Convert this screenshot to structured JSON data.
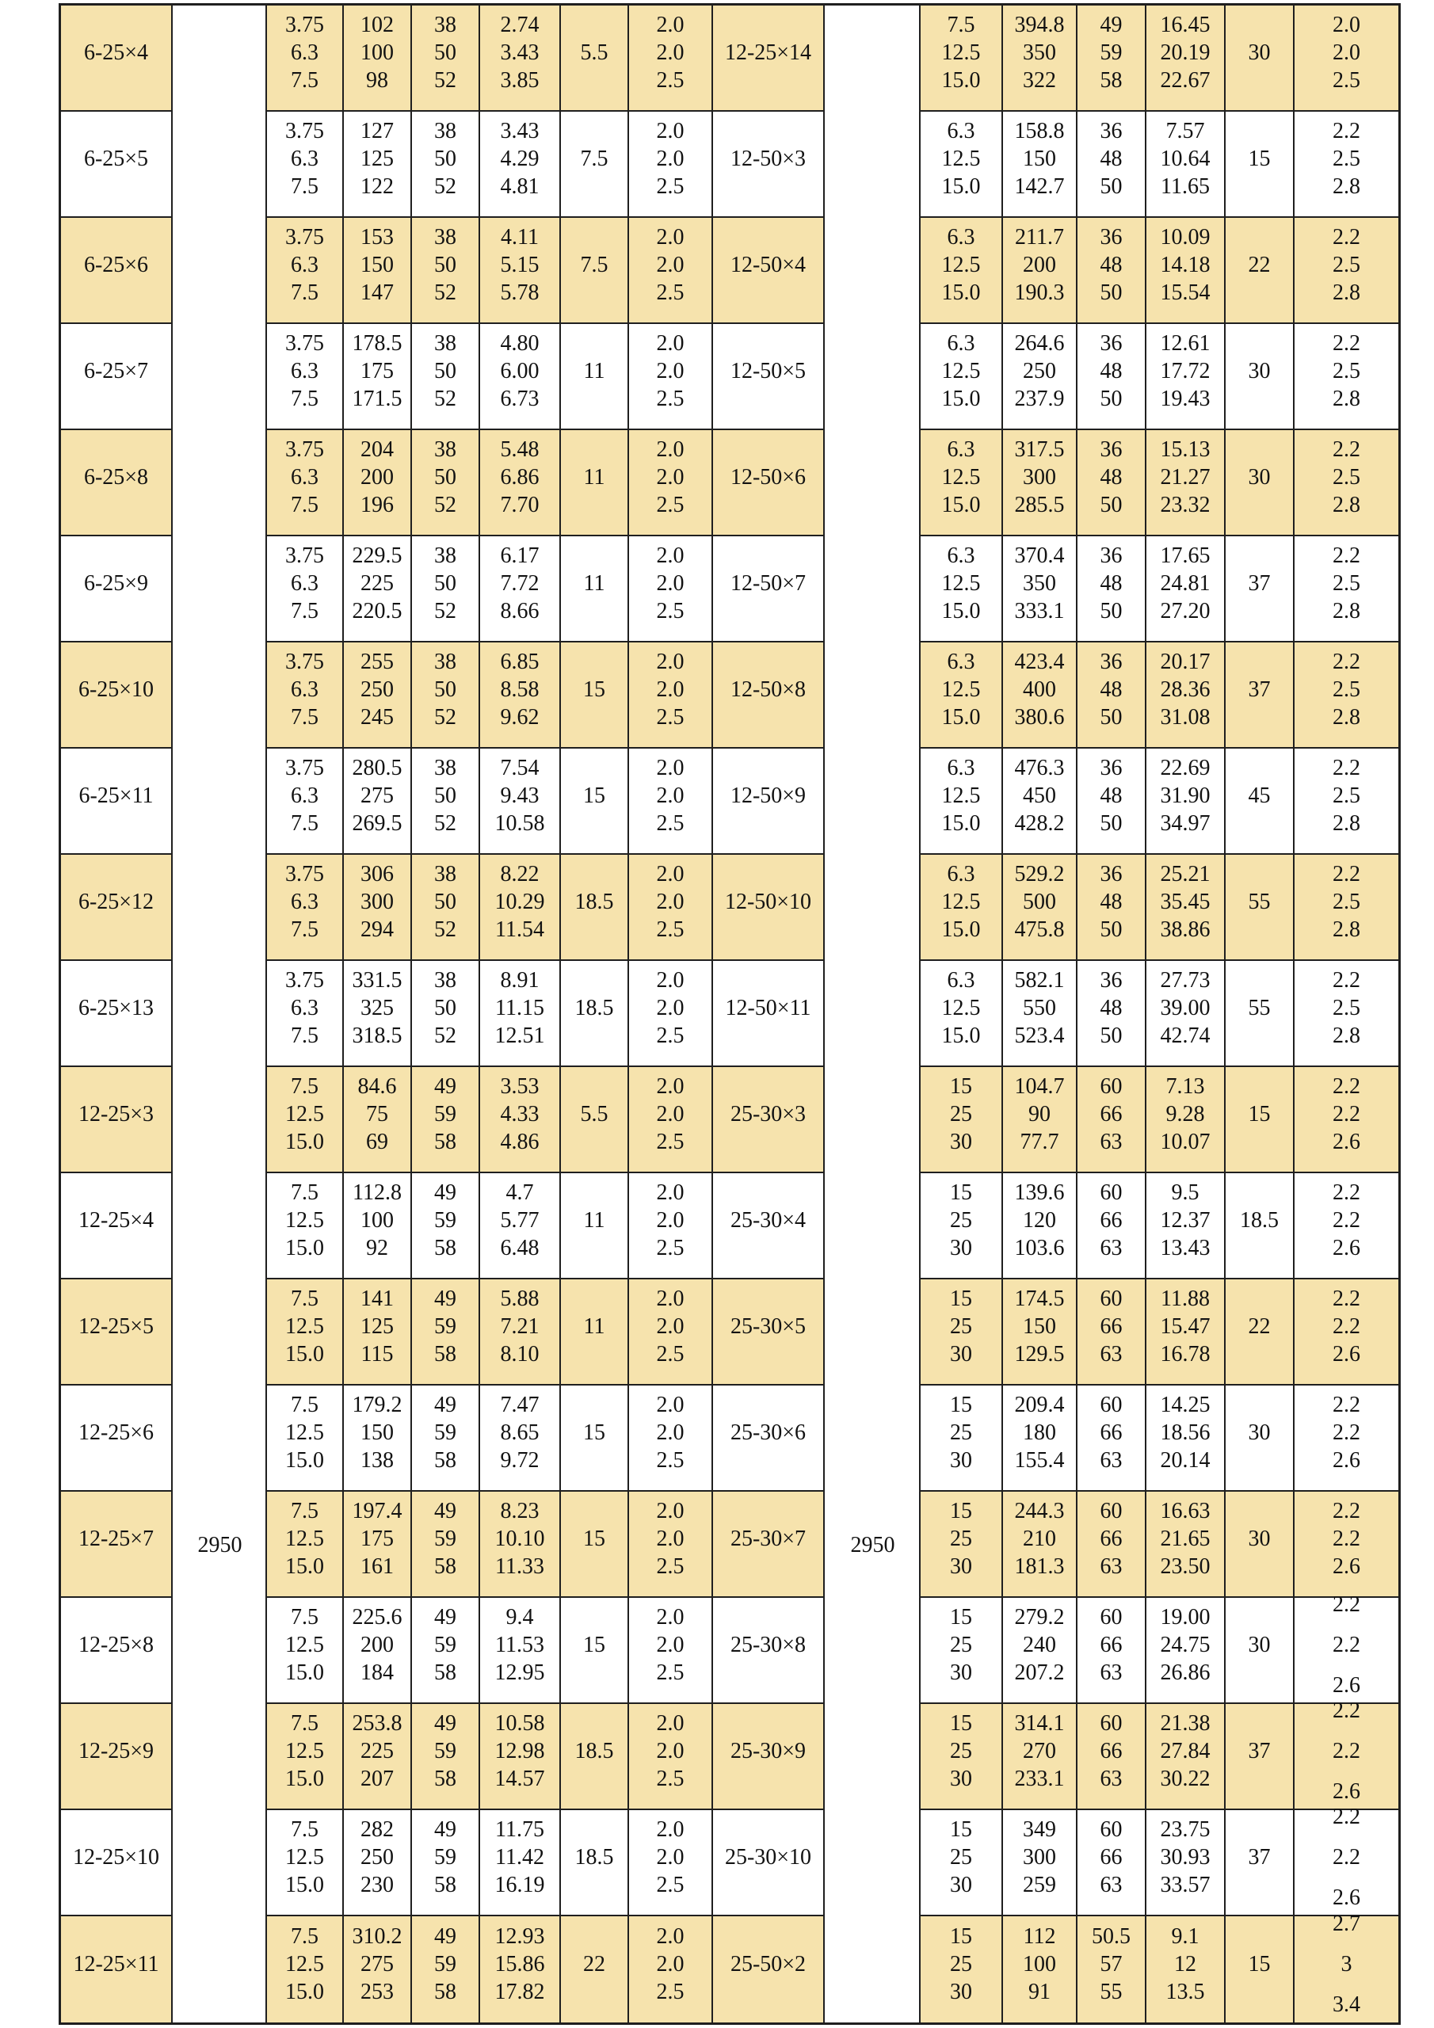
{
  "colors": {
    "stripe": "#f6e3ad",
    "grid_line": "#1f1f1f",
    "text": "#121212",
    "background": "#ffffff"
  },
  "table": {
    "left_speed": "2950",
    "right_speed": "2950",
    "rows": [
      {
        "left": {
          "model": "6-25×4",
          "flow": "3.75\n6.3\n7.5",
          "head": "102\n100\n98",
          "eff": "38\n50\n52",
          "power": "2.74\n3.43\n3.85",
          "motor": "5.5",
          "npsh": "2.0\n2.0\n2.5"
        },
        "right": {
          "model": "12-25×14",
          "flow": "7.5\n12.5\n15.0",
          "head": "394.8\n350\n322",
          "eff": "49\n59\n58",
          "power": "16.45\n20.19\n22.67",
          "motor": "30",
          "npsh": "2.0\n2.0\n2.5"
        }
      },
      {
        "left": {
          "model": "6-25×5",
          "flow": "3.75\n6.3\n7.5",
          "head": "127\n125\n122",
          "eff": "38\n50\n52",
          "power": "3.43\n4.29\n4.81",
          "motor": "7.5",
          "npsh": "2.0\n2.0\n2.5"
        },
        "right": {
          "model": "12-50×3",
          "flow": "6.3\n12.5\n15.0",
          "head": "158.8\n150\n142.7",
          "eff": "36\n48\n50",
          "power": "7.57\n10.64\n11.65",
          "motor": "15",
          "npsh": "2.2\n2.5\n2.8"
        }
      },
      {
        "left": {
          "model": "6-25×6",
          "flow": "3.75\n6.3\n7.5",
          "head": "153\n150\n147",
          "eff": "38\n50\n52",
          "power": "4.11\n5.15\n5.78",
          "motor": "7.5",
          "npsh": "2.0\n2.0\n2.5"
        },
        "right": {
          "model": "12-50×4",
          "flow": "6.3\n12.5\n15.0",
          "head": "211.7\n200\n190.3",
          "eff": "36\n48\n50",
          "power": "10.09\n14.18\n15.54",
          "motor": "22",
          "npsh": "2.2\n2.5\n2.8"
        }
      },
      {
        "left": {
          "model": "6-25×7",
          "flow": "3.75\n6.3\n7.5",
          "head": "178.5\n175\n171.5",
          "eff": "38\n50\n52",
          "power": "4.80\n6.00\n6.73",
          "motor": "11",
          "npsh": "2.0\n2.0\n2.5"
        },
        "right": {
          "model": "12-50×5",
          "flow": "6.3\n12.5\n15.0",
          "head": "264.6\n250\n237.9",
          "eff": "36\n48\n50",
          "power": "12.61\n17.72\n19.43",
          "motor": "30",
          "npsh": "2.2\n2.5\n2.8"
        }
      },
      {
        "left": {
          "model": "6-25×8",
          "flow": "3.75\n6.3\n7.5",
          "head": "204\n200\n196",
          "eff": "38\n50\n52",
          "power": "5.48\n6.86\n7.70",
          "motor": "11",
          "npsh": "2.0\n2.0\n2.5"
        },
        "right": {
          "model": "12-50×6",
          "flow": "6.3\n12.5\n15.0",
          "head": "317.5\n300\n285.5",
          "eff": "36\n48\n50",
          "power": "15.13\n21.27\n23.32",
          "motor": "30",
          "npsh": "2.2\n2.5\n2.8"
        }
      },
      {
        "left": {
          "model": "6-25×9",
          "flow": "3.75\n6.3\n7.5",
          "head": "229.5\n225\n220.5",
          "eff": "38\n50\n52",
          "power": "6.17\n7.72\n8.66",
          "motor": "11",
          "npsh": "2.0\n2.0\n2.5"
        },
        "right": {
          "model": "12-50×7",
          "flow": "6.3\n12.5\n15.0",
          "head": "370.4\n350\n333.1",
          "eff": "36\n48\n50",
          "power": "17.65\n24.81\n27.20",
          "motor": "37",
          "npsh": "2.2\n2.5\n2.8"
        }
      },
      {
        "left": {
          "model": "6-25×10",
          "flow": "3.75\n6.3\n7.5",
          "head": "255\n250\n245",
          "eff": "38\n50\n52",
          "power": "6.85\n8.58\n9.62",
          "motor": "15",
          "npsh": "2.0\n2.0\n2.5"
        },
        "right": {
          "model": "12-50×8",
          "flow": "6.3\n12.5\n15.0",
          "head": "423.4\n400\n380.6",
          "eff": "36\n48\n50",
          "power": "20.17\n28.36\n31.08",
          "motor": "37",
          "npsh": "2.2\n2.5\n2.8"
        }
      },
      {
        "left": {
          "model": "6-25×11",
          "flow": "3.75\n6.3\n7.5",
          "head": "280.5\n275\n269.5",
          "eff": "38\n50\n52",
          "power": "7.54\n9.43\n10.58",
          "motor": "15",
          "npsh": "2.0\n2.0\n2.5"
        },
        "right": {
          "model": "12-50×9",
          "flow": "6.3\n12.5\n15.0",
          "head": "476.3\n450\n428.2",
          "eff": "36\n48\n50",
          "power": "22.69\n31.90\n34.97",
          "motor": "45",
          "npsh": "2.2\n2.5\n2.8"
        }
      },
      {
        "left": {
          "model": "6-25×12",
          "flow": "3.75\n6.3\n7.5",
          "head": "306\n300\n294",
          "eff": "38\n50\n52",
          "power": "8.22\n10.29\n11.54",
          "motor": "18.5",
          "npsh": "2.0\n2.0\n2.5"
        },
        "right": {
          "model": "12-50×10",
          "flow": "6.3\n12.5\n15.0",
          "head": "529.2\n500\n475.8",
          "eff": "36\n48\n50",
          "power": "25.21\n35.45\n38.86",
          "motor": "55",
          "npsh": "2.2\n2.5\n2.8"
        }
      },
      {
        "left": {
          "model": "6-25×13",
          "flow": "3.75\n6.3\n7.5",
          "head": "331.5\n325\n318.5",
          "eff": "38\n50\n52",
          "power": "8.91\n11.15\n12.51",
          "motor": "18.5",
          "npsh": "2.0\n2.0\n2.5"
        },
        "right": {
          "model": "12-50×11",
          "flow": "6.3\n12.5\n15.0",
          "head": "582.1\n550\n523.4",
          "eff": "36\n48\n50",
          "power": "27.73\n39.00\n42.74",
          "motor": "55",
          "npsh": "2.2\n2.5\n2.8"
        }
      },
      {
        "left": {
          "model": "12-25×3",
          "flow": "7.5\n12.5\n15.0",
          "head": "84.6\n75\n69",
          "eff": "49\n59\n58",
          "power": "3.53\n4.33\n4.86",
          "motor": "5.5",
          "npsh": "2.0\n2.0\n2.5"
        },
        "right": {
          "model": "25-30×3",
          "flow": "15\n25\n30",
          "head": "104.7\n90\n77.7",
          "eff": "60\n66\n63",
          "power": "7.13\n9.28\n10.07",
          "motor": "15",
          "npsh": "2.2\n2.2\n2.6"
        }
      },
      {
        "left": {
          "model": "12-25×4",
          "flow": "7.5\n12.5\n15.0",
          "head": "112.8\n100\n92",
          "eff": "49\n59\n58",
          "power": "4.7\n5.77\n6.48",
          "motor": "11",
          "npsh": "2.0\n2.0\n2.5"
        },
        "right": {
          "model": "25-30×4",
          "flow": "15\n25\n30",
          "head": "139.6\n120\n103.6",
          "eff": "60\n66\n63",
          "power": "9.5\n12.37\n13.43",
          "motor": "18.5",
          "npsh": "2.2\n2.2\n2.6"
        }
      },
      {
        "left": {
          "model": "12-25×5",
          "flow": "7.5\n12.5\n15.0",
          "head": "141\n125\n115",
          "eff": "49\n59\n58",
          "power": "5.88\n7.21\n8.10",
          "motor": "11",
          "npsh": "2.0\n2.0\n2.5"
        },
        "right": {
          "model": "25-30×5",
          "flow": "15\n25\n30",
          "head": "174.5\n150\n129.5",
          "eff": "60\n66\n63",
          "power": "11.88\n15.47\n16.78",
          "motor": "22",
          "npsh": "2.2\n2.2\n2.6"
        }
      },
      {
        "left": {
          "model": "12-25×6",
          "flow": "7.5\n12.5\n15.0",
          "head": "179.2\n150\n138",
          "eff": "49\n59\n58",
          "power": "7.47\n8.65\n9.72",
          "motor": "15",
          "npsh": "2.0\n2.0\n2.5"
        },
        "right": {
          "model": "25-30×6",
          "flow": "15\n25\n30",
          "head": "209.4\n180\n155.4",
          "eff": "60\n66\n63",
          "power": "14.25\n18.56\n20.14",
          "motor": "30",
          "npsh": "2.2\n2.2\n2.6"
        }
      },
      {
        "left": {
          "model": "12-25×7",
          "flow": "7.5\n12.5\n15.0",
          "head": "197.4\n175\n161",
          "eff": "49\n59\n58",
          "power": "8.23\n10.10\n11.33",
          "motor": "15",
          "npsh": "2.0\n2.0\n2.5"
        },
        "right": {
          "model": "25-30×7",
          "flow": "15\n25\n30",
          "head": "244.3\n210\n181.3",
          "eff": "60\n66\n63",
          "power": "16.63\n21.65\n23.50",
          "motor": "30",
          "npsh": "2.2\n2.2\n2.6"
        }
      },
      {
        "left": {
          "model": "12-25×8",
          "flow": "7.5\n12.5\n15.0",
          "head": "225.6\n200\n184",
          "eff": "49\n59\n58",
          "power": "9.4\n11.53\n12.95",
          "motor": "15",
          "npsh": "2.0\n2.0\n2.5"
        },
        "right": {
          "model": "25-30×8",
          "flow": "15\n25\n30",
          "head": "279.2\n240\n207.2",
          "eff": "60\n66\n63",
          "power": "19.00\n24.75\n26.86",
          "motor": "30",
          "npsh": "2.2\n2.2\n2.6",
          "npsh_wide": true
        }
      },
      {
        "left": {
          "model": "12-25×9",
          "flow": "7.5\n12.5\n15.0",
          "head": "253.8\n225\n207",
          "eff": "49\n59\n58",
          "power": "10.58\n12.98\n14.57",
          "motor": "18.5",
          "npsh": "2.0\n2.0\n2.5"
        },
        "right": {
          "model": "25-30×9",
          "flow": "15\n25\n30",
          "head": "314.1\n270\n233.1",
          "eff": "60\n66\n63",
          "power": "21.38\n27.84\n30.22",
          "motor": "37",
          "npsh": "2.2\n2.2\n2.6",
          "npsh_wide": true
        }
      },
      {
        "left": {
          "model": "12-25×10",
          "flow": "7.5\n12.5\n15.0",
          "head": "282\n250\n230",
          "eff": "49\n59\n58",
          "power": "11.75\n11.42\n16.19",
          "motor": "18.5",
          "npsh": "2.0\n2.0\n2.5"
        },
        "right": {
          "model": "25-30×10",
          "flow": "15\n25\n30",
          "head": "349\n300\n259",
          "eff": "60\n66\n63",
          "power": "23.75\n30.93\n33.57",
          "motor": "37",
          "npsh": "2.2\n2.2\n2.6",
          "npsh_wide": true
        }
      },
      {
        "left": {
          "model": "12-25×11",
          "flow": "7.5\n12.5\n15.0",
          "head": "310.2\n275\n253",
          "eff": "49\n59\n58",
          "power": "12.93\n15.86\n17.82",
          "motor": "22",
          "npsh": "2.0\n2.0\n2.5"
        },
        "right": {
          "model": "25-50×2",
          "flow": "15\n25\n30",
          "head": "112\n100\n91",
          "eff": "50.5\n57\n55",
          "power": "9.1\n12\n13.5",
          "motor": "15",
          "npsh": "2.7\n3\n3.4",
          "npsh_wide": true
        }
      }
    ]
  }
}
